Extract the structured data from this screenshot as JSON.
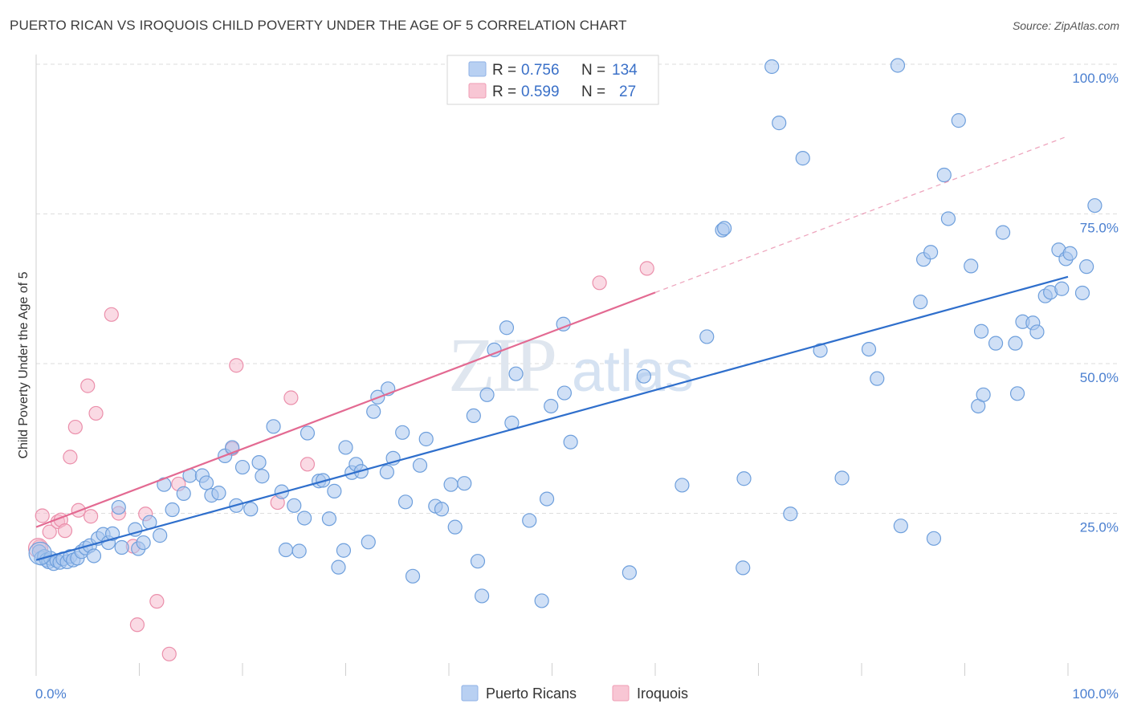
{
  "header": {
    "title": "PUERTO RICAN VS IROQUOIS CHILD POVERTY UNDER THE AGE OF 5 CORRELATION CHART",
    "source": "Source: ZipAtlas.com"
  },
  "watermark": {
    "zip": "ZIP",
    "atlas": "atlas"
  },
  "stats_legend": {
    "rows": [
      {
        "r_label": "R =",
        "r_value": "0.756",
        "n_label": "N =",
        "n_value": "134",
        "color": "#b8d0f2",
        "border": "#8fb2e6"
      },
      {
        "r_label": "R =",
        "r_value": "0.599",
        "n_label": "N =",
        "n_value": "27",
        "color": "#f8c6d4",
        "border": "#ef9db5"
      }
    ]
  },
  "colors": {
    "blue_fill": "#a9c7ee",
    "blue_stroke": "#6e9fdc",
    "blue_line": "#2f6fcc",
    "pink_fill": "#f6bccd",
    "pink_stroke": "#eb8fab",
    "pink_line": "#e36a92",
    "grid": "#dddddd",
    "tick_text": "#4a7fd0"
  },
  "chart_data": {
    "type": "scatter",
    "title": "PUERTO RICAN VS IROQUOIS CHILD POVERTY UNDER THE AGE OF 5 CORRELATION CHART",
    "xlabel": "",
    "ylabel": "Child Poverty Under the Age of 5",
    "xlim": [
      0,
      100
    ],
    "ylim": [
      0,
      100
    ],
    "x_tick_labels": [
      "0.0%",
      "100.0%"
    ],
    "y_ticks": [
      25,
      50,
      75,
      100
    ],
    "y_tick_labels": [
      "25.0%",
      "50.0%",
      "75.0%",
      "100.0%"
    ],
    "grid": true,
    "legend_position": "bottom",
    "series": [
      {
        "name": "Puerto Ricans",
        "color": "#6e9fdc",
        "trend": {
          "x": [
            0,
            100
          ],
          "y": [
            17.2,
            64.5
          ],
          "style": "solid"
        },
        "points": [
          [
            0.3,
            18.6
          ],
          [
            0.5,
            17.5
          ],
          [
            0.8,
            17.8
          ],
          [
            1,
            17.2
          ],
          [
            1.2,
            16.9
          ],
          [
            1.4,
            17.5
          ],
          [
            1.7,
            16.6
          ],
          [
            2,
            17.1
          ],
          [
            2.3,
            16.8
          ],
          [
            2.6,
            17.4
          ],
          [
            3,
            16.9
          ],
          [
            3.3,
            17.8
          ],
          [
            3.6,
            17.2
          ],
          [
            4,
            17.5
          ],
          [
            4.4,
            18.6
          ],
          [
            4.8,
            19.2
          ],
          [
            5.2,
            19.6
          ],
          [
            5.6,
            17.9
          ],
          [
            6,
            20.8
          ],
          [
            6.5,
            21.5
          ],
          [
            7,
            20.1
          ],
          [
            7.4,
            21.6
          ],
          [
            8,
            26
          ],
          [
            8.3,
            19.3
          ],
          [
            9.6,
            22.3
          ],
          [
            9.9,
            19.1
          ],
          [
            10.4,
            20.1
          ],
          [
            11,
            23.5
          ],
          [
            12,
            21.3
          ],
          [
            13.2,
            25.6
          ],
          [
            12.4,
            29.8
          ],
          [
            14.3,
            28.3
          ],
          [
            14.9,
            31.3
          ],
          [
            16.1,
            31.3
          ],
          [
            16.5,
            30.1
          ],
          [
            17,
            28
          ],
          [
            17.7,
            28.4
          ],
          [
            18.3,
            34.6
          ],
          [
            19,
            36
          ],
          [
            19.4,
            26.3
          ],
          [
            20,
            32.7
          ],
          [
            20.8,
            25.7
          ],
          [
            21.6,
            33.5
          ],
          [
            21.9,
            31.2
          ],
          [
            23,
            39.5
          ],
          [
            23.8,
            28.6
          ],
          [
            24.2,
            18.9
          ],
          [
            25,
            26.3
          ],
          [
            25.5,
            18.7
          ],
          [
            26,
            24.2
          ],
          [
            26.3,
            38.4
          ],
          [
            27.4,
            30.4
          ],
          [
            27.8,
            30.5
          ],
          [
            28.4,
            24.1
          ],
          [
            28.9,
            28.7
          ],
          [
            29.3,
            16
          ],
          [
            29.8,
            18.8
          ],
          [
            30,
            36
          ],
          [
            30.6,
            31.8
          ],
          [
            31,
            33.2
          ],
          [
            31.5,
            32
          ],
          [
            32.2,
            20.2
          ],
          [
            32.7,
            42
          ],
          [
            33.1,
            44.4
          ],
          [
            34.1,
            45.8
          ],
          [
            34,
            31.9
          ],
          [
            34.6,
            34.2
          ],
          [
            35.5,
            38.5
          ],
          [
            35.8,
            26.9
          ],
          [
            36.5,
            14.5
          ],
          [
            37.2,
            33
          ],
          [
            37.8,
            37.4
          ],
          [
            38.7,
            26.2
          ],
          [
            39.3,
            25.7
          ],
          [
            40.2,
            29.8
          ],
          [
            40.6,
            22.7
          ],
          [
            41.5,
            30
          ],
          [
            42.4,
            41.3
          ],
          [
            42.8,
            17
          ],
          [
            43.2,
            11.2
          ],
          [
            43.7,
            44.8
          ],
          [
            44.4,
            52.3
          ],
          [
            45.6,
            56
          ],
          [
            46.1,
            40.1
          ],
          [
            46.5,
            48.3
          ],
          [
            47.8,
            23.8
          ],
          [
            49.5,
            27.4
          ],
          [
            49,
            10.4
          ],
          [
            49.9,
            42.9
          ],
          [
            51.1,
            56.6
          ],
          [
            51.2,
            45.1
          ],
          [
            51.8,
            36.9
          ],
          [
            57.5,
            15.1
          ],
          [
            58.9,
            47.9
          ],
          [
            62.6,
            29.7
          ],
          [
            65,
            54.5
          ],
          [
            66.5,
            72.3
          ],
          [
            66.7,
            72.6
          ],
          [
            68.6,
            30.8
          ],
          [
            68.5,
            15.9
          ],
          [
            71.3,
            99.6
          ],
          [
            72,
            90.2
          ],
          [
            73.1,
            24.9
          ],
          [
            74.3,
            84.3
          ],
          [
            76,
            52.2
          ],
          [
            78.1,
            30.9
          ],
          [
            80.7,
            52.4
          ],
          [
            81.5,
            47.5
          ],
          [
            83.8,
            22.9
          ],
          [
            85.7,
            60.3
          ],
          [
            86,
            67.4
          ],
          [
            86.7,
            68.6
          ],
          [
            87,
            20.8
          ],
          [
            88,
            81.5
          ],
          [
            88.4,
            74.2
          ],
          [
            89.4,
            90.6
          ],
          [
            90.6,
            66.3
          ],
          [
            91.3,
            42.9
          ],
          [
            91.6,
            55.4
          ],
          [
            91.8,
            44.8
          ],
          [
            93,
            53.4
          ],
          [
            93.7,
            71.9
          ],
          [
            94.9,
            53.4
          ],
          [
            95.1,
            45
          ],
          [
            95.6,
            57
          ],
          [
            96.6,
            56.8
          ],
          [
            97,
            55.3
          ],
          [
            97.8,
            61.3
          ],
          [
            98.3,
            61.9
          ],
          [
            99.1,
            69
          ],
          [
            99.4,
            62.5
          ],
          [
            99.8,
            67.5
          ],
          [
            100.2,
            68.4
          ],
          [
            101.4,
            61.8
          ],
          [
            101.8,
            66.2
          ],
          [
            102.6,
            76.4
          ],
          [
            83.5,
            99.8
          ]
        ]
      },
      {
        "name": "Iroquois",
        "color": "#eb8fab",
        "trend": {
          "x": [
            0,
            100
          ],
          "y": [
            22.7,
            88
          ],
          "style": "solid to 60, dashed after"
        },
        "points": [
          [
            0.3,
            19.4
          ],
          [
            0.6,
            24.6
          ],
          [
            1.3,
            21.9
          ],
          [
            2.1,
            23.6
          ],
          [
            2.4,
            23.9
          ],
          [
            2.8,
            22.1
          ],
          [
            3.3,
            34.4
          ],
          [
            3.8,
            39.4
          ],
          [
            4.1,
            25.5
          ],
          [
            5,
            46.3
          ],
          [
            5.3,
            24.5
          ],
          [
            5.8,
            41.7
          ],
          [
            7.3,
            58.2
          ],
          [
            8,
            25
          ],
          [
            9.4,
            19.5
          ],
          [
            9.8,
            6.4
          ],
          [
            10.6,
            24.9
          ],
          [
            11.7,
            10.3
          ],
          [
            12.9,
            1.5
          ],
          [
            13.8,
            29.9
          ],
          [
            19,
            35.8
          ],
          [
            19.4,
            49.7
          ],
          [
            23.4,
            26.8
          ],
          [
            24.7,
            44.3
          ],
          [
            26.3,
            33.2
          ],
          [
            54.6,
            63.5
          ],
          [
            59.2,
            65.9
          ]
        ]
      }
    ]
  },
  "bottom_legend": {
    "items": [
      {
        "label": "Puerto Ricans",
        "color": "#b8d0f2",
        "border": "#8fb2e6"
      },
      {
        "label": "Iroquois",
        "color": "#f8c6d4",
        "border": "#ef9db5"
      }
    ]
  }
}
